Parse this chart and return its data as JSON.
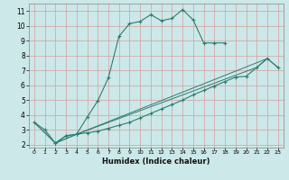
{
  "title": "",
  "xlabel": "Humidex (Indice chaleur)",
  "background_color": "#cce8e8",
  "grid_color": "#d4a0a0",
  "line_color": "#2e7d6e",
  "ylim": [
    1.8,
    11.5
  ],
  "xlim": [
    -0.5,
    23.5
  ],
  "yticks": [
    2,
    3,
    4,
    5,
    6,
    7,
    8,
    9,
    10,
    11
  ],
  "xticks": [
    0,
    1,
    2,
    3,
    4,
    5,
    6,
    7,
    8,
    9,
    10,
    11,
    12,
    13,
    14,
    15,
    16,
    17,
    18,
    19,
    20,
    21,
    22,
    23
  ],
  "series": [
    {
      "x": [
        0,
        1,
        2,
        3,
        4,
        5,
        6,
        7,
        8,
        9,
        10,
        11,
        12,
        13,
        14,
        15,
        16,
        17,
        18
      ],
      "y": [
        3.5,
        3.0,
        2.1,
        2.6,
        2.7,
        3.85,
        4.95,
        6.5,
        9.3,
        10.15,
        10.3,
        10.75,
        10.35,
        10.5,
        11.1,
        10.4,
        8.85,
        8.85,
        8.85
      ]
    },
    {
      "x": [
        2,
        3,
        4,
        5,
        6,
        7,
        8,
        9,
        10,
        11,
        12,
        13,
        14,
        15,
        16,
        17,
        18,
        19,
        20,
        21,
        22,
        23
      ],
      "y": [
        2.1,
        2.6,
        2.7,
        2.8,
        2.9,
        3.1,
        3.3,
        3.5,
        3.8,
        4.1,
        4.4,
        4.7,
        5.0,
        5.35,
        5.65,
        5.95,
        6.25,
        6.55,
        6.6,
        7.2,
        7.8,
        7.2
      ]
    },
    {
      "x": [
        0,
        2,
        4,
        22,
        23
      ],
      "y": [
        3.5,
        2.1,
        2.7,
        7.8,
        7.2
      ]
    },
    {
      "x": [
        0,
        2,
        4,
        21,
        22
      ],
      "y": [
        3.5,
        2.1,
        2.7,
        7.2,
        7.8
      ]
    }
  ]
}
